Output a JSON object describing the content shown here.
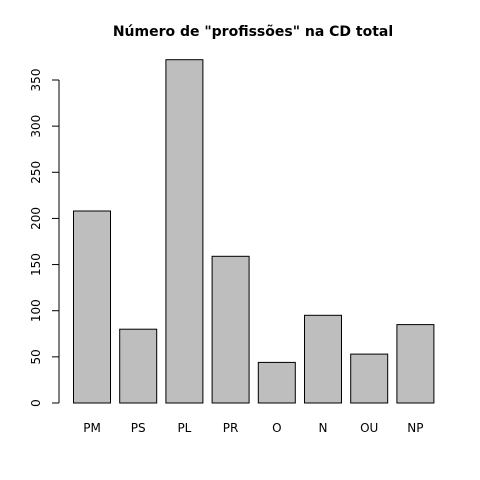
{
  "chart_data": {
    "type": "bar",
    "title": "Número de \"profissões\" na CD total",
    "xlabel": "",
    "ylabel": "",
    "categories": [
      "PM",
      "PS",
      "PL",
      "PR",
      "O",
      "N",
      "OU",
      "NP"
    ],
    "values": [
      208,
      80,
      372,
      159,
      44,
      95,
      53,
      85
    ],
    "ylim": [
      0,
      350
    ],
    "yticks": [
      0,
      50,
      100,
      150,
      200,
      250,
      300,
      350
    ],
    "bar_color": "#bebebe",
    "grid": false
  }
}
